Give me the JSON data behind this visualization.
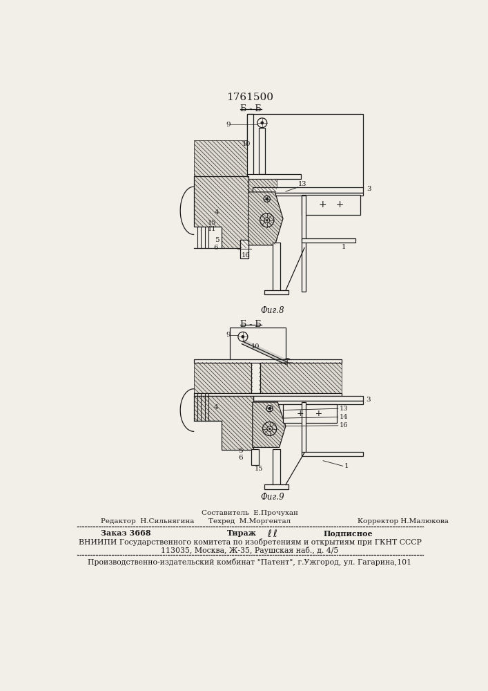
{
  "patent_number": "1761500",
  "bg_color": "#f2efe9",
  "fig_width": 7.07,
  "fig_height": 10.0,
  "dpi": 100,
  "section_label": "Б - Б",
  "fig8_label": "Фиг.8",
  "fig9_label": "Фиг.9",
  "footer": {
    "sostavitel": "Составитель  Е.Прочухан",
    "editor": "Редактор  Н.Сильнягина",
    "techred": "Техред  М.Моргентал",
    "corrector": "Корректор Н.Малюкова",
    "order": "Заказ 3668",
    "tirazh": "Тираж",
    "podpisnoe": "Подписное",
    "vniiipi1": "ВНИИПИ Государственного комитета по изобретениям и открытиям при ГКНТ СССР",
    "vniiipi2": "113035, Москва, Ж-35, Раушская наб., д. 4/5",
    "patent_line": "Производственно-издательский комбинат \"Патент\", г.Ужгород, ул. Гагарина,101"
  }
}
